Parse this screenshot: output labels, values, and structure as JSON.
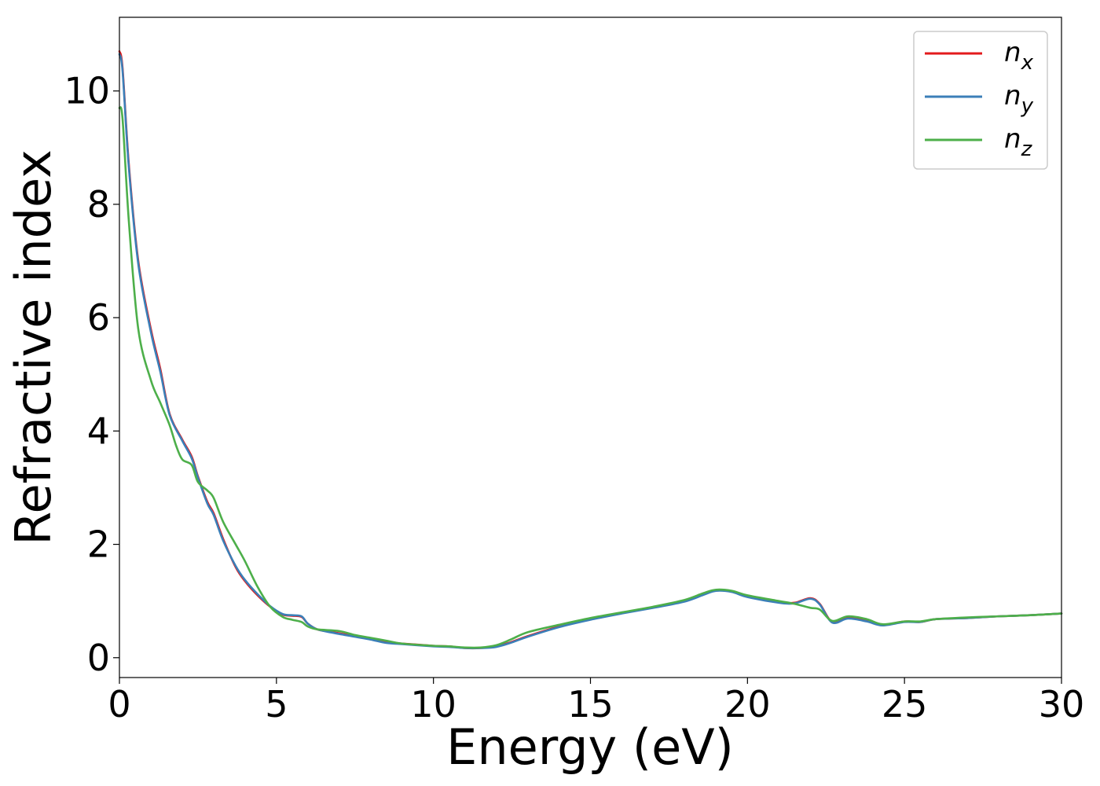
{
  "chart_data": {
    "type": "line",
    "title": "",
    "xlabel": "Energy (eV)",
    "ylabel": "Refractive index",
    "xlim": [
      0,
      30
    ],
    "ylim": [
      -0.35,
      11.3
    ],
    "xticks": [
      0,
      5,
      10,
      15,
      20,
      25,
      30
    ],
    "yticks": [
      0,
      2,
      4,
      6,
      8,
      10
    ],
    "grid": false,
    "legend_position": "top-right",
    "series": [
      {
        "name": "n",
        "subscript": "x",
        "color": "#e31a1c",
        "x": [
          0,
          0.1,
          0.3,
          0.6,
          1.0,
          1.3,
          1.6,
          2.0,
          2.3,
          2.5,
          2.8,
          3.0,
          3.3,
          3.7,
          4.0,
          4.4,
          4.8,
          5.2,
          5.5,
          5.8,
          6.0,
          6.3,
          6.8,
          7.5,
          8.0,
          8.5,
          9.0,
          10.0,
          10.5,
          11.0,
          11.5,
          12.0,
          12.5,
          13.0,
          14.0,
          15.0,
          16.0,
          17.0,
          18.0,
          18.6,
          19.0,
          19.5,
          20.0,
          21.0,
          21.5,
          22.0,
          22.3,
          22.7,
          23.2,
          23.8,
          24.3,
          25.0,
          25.5,
          26.0,
          27.0,
          28.0,
          29.0,
          30.0
        ],
        "y": [
          10.7,
          10.4,
          8.7,
          7.0,
          5.8,
          5.1,
          4.3,
          3.85,
          3.55,
          3.2,
          2.75,
          2.55,
          2.1,
          1.6,
          1.35,
          1.1,
          0.9,
          0.76,
          0.74,
          0.72,
          0.6,
          0.5,
          0.45,
          0.38,
          0.33,
          0.27,
          0.25,
          0.21,
          0.2,
          0.17,
          0.17,
          0.2,
          0.28,
          0.38,
          0.55,
          0.68,
          0.79,
          0.89,
          1.0,
          1.12,
          1.19,
          1.17,
          1.08,
          0.98,
          0.97,
          1.05,
          0.95,
          0.63,
          0.7,
          0.65,
          0.58,
          0.64,
          0.63,
          0.68,
          0.7,
          0.73,
          0.75,
          0.78
        ]
      },
      {
        "name": "n",
        "subscript": "y",
        "color": "#3b7fb8",
        "x": [
          0,
          0.1,
          0.3,
          0.6,
          1.0,
          1.3,
          1.6,
          2.0,
          2.3,
          2.5,
          2.8,
          3.0,
          3.3,
          3.7,
          4.0,
          4.4,
          4.8,
          5.2,
          5.5,
          5.8,
          6.0,
          6.3,
          6.8,
          7.5,
          8.0,
          8.5,
          9.0,
          10.0,
          10.5,
          11.0,
          11.5,
          12.0,
          12.5,
          13.0,
          14.0,
          15.0,
          16.0,
          17.0,
          18.0,
          18.6,
          19.0,
          19.5,
          20.0,
          21.0,
          21.5,
          22.0,
          22.3,
          22.7,
          23.2,
          23.8,
          24.3,
          25.0,
          25.5,
          26.0,
          27.0,
          28.0,
          29.0,
          30.0
        ],
        "y": [
          10.65,
          10.35,
          8.65,
          6.95,
          5.75,
          5.05,
          4.28,
          3.83,
          3.52,
          3.18,
          2.72,
          2.52,
          2.07,
          1.62,
          1.37,
          1.12,
          0.91,
          0.77,
          0.75,
          0.73,
          0.6,
          0.5,
          0.44,
          0.37,
          0.32,
          0.26,
          0.24,
          0.2,
          0.19,
          0.17,
          0.17,
          0.19,
          0.27,
          0.37,
          0.54,
          0.67,
          0.78,
          0.88,
          0.99,
          1.11,
          1.18,
          1.16,
          1.07,
          0.97,
          0.96,
          1.04,
          0.94,
          0.62,
          0.69,
          0.64,
          0.57,
          0.63,
          0.63,
          0.68,
          0.7,
          0.73,
          0.75,
          0.78
        ]
      },
      {
        "name": "n",
        "subscript": "z",
        "color": "#4daf4a",
        "x": [
          0,
          0.1,
          0.3,
          0.6,
          1.0,
          1.3,
          1.6,
          1.8,
          2.0,
          2.3,
          2.5,
          2.8,
          3.0,
          3.3,
          3.7,
          4.0,
          4.4,
          4.8,
          5.2,
          5.5,
          5.8,
          6.0,
          6.3,
          7.0,
          7.5,
          8.0,
          8.5,
          9.0,
          10.0,
          10.5,
          11.0,
          11.5,
          12.0,
          12.5,
          13.0,
          14.0,
          15.0,
          16.0,
          17.0,
          18.0,
          18.6,
          19.0,
          19.5,
          20.0,
          21.0,
          21.5,
          22.0,
          22.3,
          22.7,
          23.2,
          23.8,
          24.3,
          25.0,
          25.5,
          26.0,
          27.0,
          28.0,
          29.0,
          30.0
        ],
        "y": [
          9.7,
          9.5,
          7.7,
          5.8,
          4.9,
          4.5,
          4.1,
          3.75,
          3.5,
          3.4,
          3.1,
          2.95,
          2.82,
          2.4,
          2.0,
          1.7,
          1.25,
          0.9,
          0.72,
          0.67,
          0.63,
          0.55,
          0.5,
          0.47,
          0.4,
          0.35,
          0.3,
          0.25,
          0.21,
          0.2,
          0.18,
          0.18,
          0.22,
          0.33,
          0.45,
          0.58,
          0.7,
          0.8,
          0.9,
          1.02,
          1.14,
          1.2,
          1.18,
          1.1,
          1.0,
          0.95,
          0.88,
          0.85,
          0.65,
          0.73,
          0.68,
          0.59,
          0.64,
          0.64,
          0.68,
          0.71,
          0.73,
          0.75,
          0.78
        ]
      }
    ]
  }
}
